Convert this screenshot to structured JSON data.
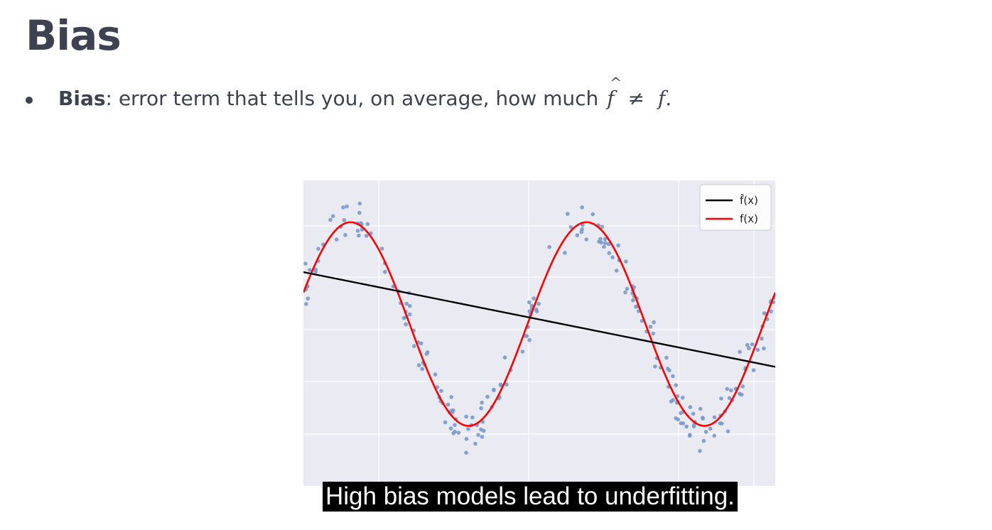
{
  "slide": {
    "title": "Bias",
    "bullet": {
      "term": "Bias",
      "text": ": error term that tells you, on average, how much",
      "math_lhs": "f",
      "math_op": "≠",
      "math_rhs": "f",
      "math_end": "."
    },
    "caption": "High bias models lead to underfitting."
  },
  "chart_data": {
    "type": "scatter",
    "title": "",
    "xlabel": "",
    "ylabel": "",
    "xlim": [
      0,
      1
    ],
    "ylim": [
      -1.6,
      1.4
    ],
    "grid": true,
    "legend_placement": "top-right",
    "legend": [
      {
        "label": "f̂(x)",
        "color": "#000000"
      },
      {
        "label": "f(x)",
        "color": "#ff0000"
      }
    ],
    "series": [
      {
        "name": "f̂(x)",
        "kind": "line",
        "color": "#000000",
        "x": [
          0,
          1
        ],
        "y": [
          0.5,
          -0.43
        ]
      },
      {
        "name": "f(x)",
        "kind": "curve",
        "color": "#ff0000",
        "formula": "sin(4*pi*x + 0.05*2*pi) - 0.01",
        "x_range": [
          0,
          1
        ]
      },
      {
        "name": "",
        "kind": "points",
        "color": "#7a9acb",
        "count": 230,
        "noise": 0.22,
        "about": "f(x)"
      }
    ]
  }
}
